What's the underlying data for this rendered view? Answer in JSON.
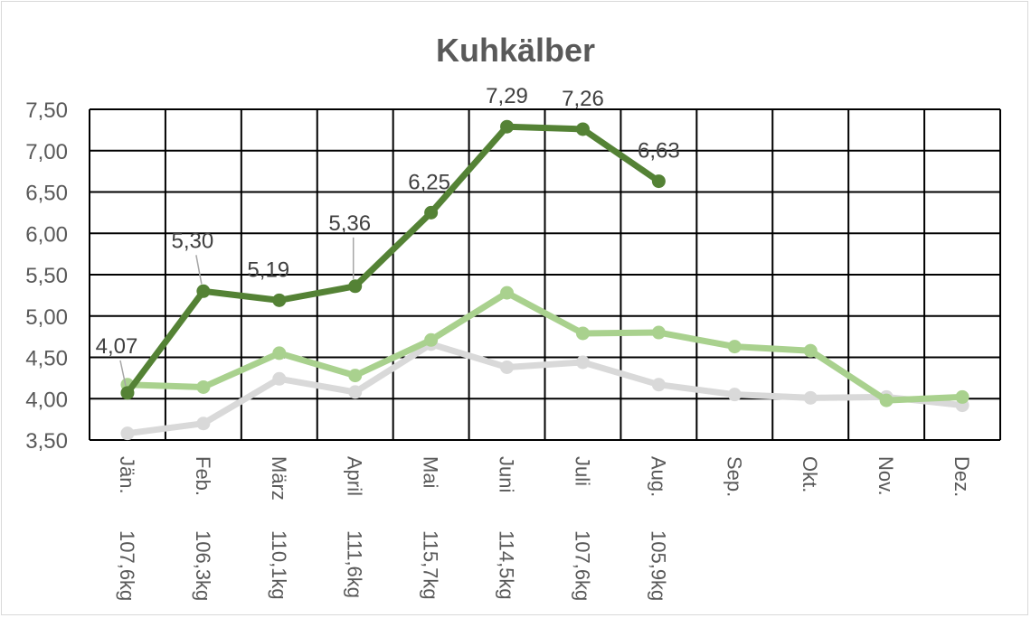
{
  "chart_data": {
    "type": "line",
    "title": "Kuhkälber",
    "xlabel": "",
    "ylabel": "",
    "ylim": [
      3.5,
      7.5
    ],
    "yticks": [
      "3,50",
      "4,00",
      "4,50",
      "5,00",
      "5,50",
      "6,00",
      "6,50",
      "7,00",
      "7,50"
    ],
    "grid": true,
    "categories": [
      [
        "Jän.",
        "107,6kg"
      ],
      [
        "Feb.",
        "106,3kg"
      ],
      [
        "März",
        "110,1kg"
      ],
      [
        "April",
        "111,6kg"
      ],
      [
        "Mai",
        "115,7kg"
      ],
      [
        "Juni",
        "114,5kg"
      ],
      [
        "Juli",
        "107,6kg"
      ],
      [
        "Aug.",
        "105,9kg"
      ],
      [
        "Sep.",
        ""
      ],
      [
        "Okt.",
        ""
      ],
      [
        "Nov.",
        ""
      ],
      [
        "Dez.",
        ""
      ]
    ],
    "series": [
      {
        "color": "#d9d9d9",
        "values": [
          3.58,
          3.7,
          4.24,
          4.08,
          4.66,
          4.38,
          4.44,
          4.17,
          4.05,
          4.01,
          4.02,
          3.92
        ]
      },
      {
        "color": "#a9d18e",
        "values": [
          4.17,
          4.14,
          4.55,
          4.28,
          4.71,
          5.28,
          4.79,
          4.8,
          4.63,
          4.58,
          3.98,
          4.02
        ]
      },
      {
        "color": "#548235",
        "values": [
          4.07,
          5.3,
          5.19,
          5.36,
          6.25,
          7.29,
          7.26,
          6.63,
          null,
          null,
          null,
          null
        ],
        "data_labels": [
          "4,07",
          "5,30",
          "5,19",
          "5,36",
          "6,25",
          "7,29",
          "7,26",
          "6,63"
        ]
      }
    ]
  }
}
